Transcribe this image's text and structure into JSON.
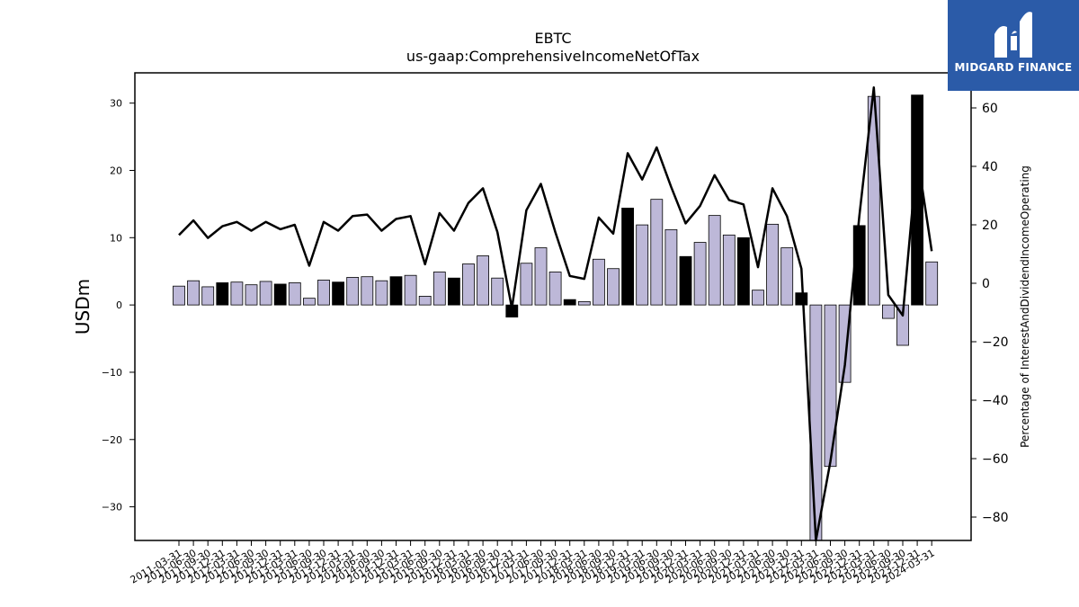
{
  "chart_data": {
    "type": "bar",
    "title": "EBTC",
    "subtitle": "us-gaap:ComprehensiveIncomeNetOfTax",
    "ylabel": "USDm",
    "y2label": "Percentage of InterestAndDividendIncomeOperating",
    "ylim": [
      -35,
      34.5
    ],
    "y2lim": [
      -88,
      72
    ],
    "yticks": [
      30,
      20,
      10,
      0,
      -10,
      -20,
      -30
    ],
    "y2ticks": [
      60,
      40,
      20,
      0,
      -20,
      -40,
      -60,
      -80
    ],
    "categories": [
      "2011-03-31",
      "2011-06-30",
      "2011-09-30",
      "2011-12-31",
      "2012-03-31",
      "2012-06-30",
      "2012-09-30",
      "2012-12-31",
      "2013-03-31",
      "2013-06-30",
      "2013-09-30",
      "2013-12-31",
      "2014-03-31",
      "2014-06-30",
      "2014-09-30",
      "2014-12-31",
      "2015-03-31",
      "2015-06-30",
      "2015-09-30",
      "2015-12-31",
      "2016-03-31",
      "2016-06-30",
      "2016-09-30",
      "2016-12-31",
      "2017-03-31",
      "2017-06-30",
      "2017-09-30",
      "2017-12-31",
      "2018-03-31",
      "2018-06-30",
      "2018-09-30",
      "2018-12-31",
      "2019-03-31",
      "2019-06-30",
      "2019-09-30",
      "2019-12-31",
      "2020-03-31",
      "2020-06-30",
      "2020-09-30",
      "2020-12-31",
      "2021-03-31",
      "2021-06-30",
      "2021-09-30",
      "2021-12-31",
      "2022-03-31",
      "2022-06-30",
      "2022-09-30",
      "2022-12-31",
      "2023-03-31",
      "2023-06-30",
      "2023-09-30",
      "2023-12-31",
      "2024-03-31"
    ],
    "series": [
      {
        "type": "bar",
        "values": [
          2.8,
          3.6,
          2.7,
          3.3,
          3.4,
          3.0,
          3.5,
          3.1,
          3.3,
          1.0,
          3.7,
          3.4,
          4.1,
          4.2,
          3.6,
          4.2,
          4.4,
          1.3,
          4.9,
          4.0,
          6.1,
          7.3,
          4.0,
          -1.8,
          6.2,
          8.5,
          4.9,
          0.8,
          0.5,
          6.8,
          5.4,
          14.4,
          11.9,
          15.7,
          11.2,
          7.2,
          9.3,
          13.3,
          10.4,
          10.0,
          2.2,
          12.0,
          8.5,
          1.8,
          -36.0,
          -24.0,
          -11.5,
          11.8,
          31.0,
          -2.0,
          -6.0,
          31.2,
          6.4
        ],
        "highlight": [
          false,
          false,
          false,
          true,
          false,
          false,
          false,
          true,
          false,
          false,
          false,
          true,
          false,
          false,
          false,
          true,
          false,
          false,
          false,
          true,
          false,
          false,
          false,
          true,
          false,
          false,
          false,
          true,
          false,
          false,
          false,
          true,
          false,
          false,
          false,
          true,
          false,
          false,
          false,
          true,
          false,
          false,
          false,
          true,
          false,
          false,
          false,
          true,
          false,
          false,
          false,
          true,
          false
        ]
      },
      {
        "type": "line",
        "axis": "right",
        "values": [
          16.5,
          21.5,
          15.5,
          19.5,
          21.0,
          18.0,
          21.0,
          18.5,
          20.0,
          6.0,
          21.0,
          18.0,
          23.0,
          23.5,
          18.0,
          22.0,
          23.0,
          6.5,
          24.0,
          18.0,
          27.5,
          32.5,
          17.5,
          -8.5,
          25.0,
          34.0,
          17.5,
          2.5,
          1.5,
          22.5,
          17.0,
          44.5,
          35.5,
          46.5,
          33.0,
          20.5,
          26.5,
          37.0,
          28.5,
          27.0,
          5.5,
          32.5,
          23.0,
          5.0,
          -93.0,
          -61.0,
          -28.0,
          23.0,
          67.0,
          -4.0,
          -11.0,
          44.0,
          11.0
        ]
      }
    ],
    "colors": {
      "bar": "#bdb8d8",
      "bar_highlight": "#000000",
      "line": "#000000",
      "axis": "#000000"
    }
  },
  "logo": {
    "text": "MIDGARD FINANCE",
    "bg": "#2b5ba8"
  }
}
